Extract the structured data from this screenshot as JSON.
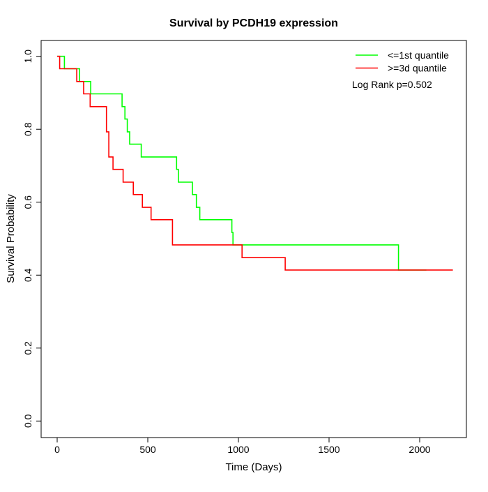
{
  "title": "Survival by PCDH19 expression",
  "axes": {
    "x_label": "Time (Days)",
    "y_label": "Survival Probability",
    "x_ticks": [
      0,
      500,
      1000,
      1500,
      2000
    ],
    "y_ticks": [
      "0.0",
      "0.2",
      "0.4",
      "0.6",
      "0.8",
      "1.0"
    ]
  },
  "legend": {
    "items": [
      {
        "label": "<=1st quantile",
        "color": "#00ff00"
      },
      {
        "label": ">=3d quantile",
        "color": "#ff0000"
      }
    ],
    "note": "Log Rank p=0.502"
  },
  "chart_data": {
    "type": "line",
    "subtype": "kaplan-meier-step",
    "title": "Survival by PCDH19 expression",
    "xlabel": "Time (Days)",
    "ylabel": "Survival Probability",
    "xlim": [
      0,
      2250
    ],
    "ylim": [
      0,
      1
    ],
    "grid": false,
    "legend_position": "top-right",
    "annotation": "Log Rank p=0.502",
    "series": [
      {
        "name": "<=1st quantile",
        "color": "#00ff00",
        "steps": [
          [
            0,
            1.0
          ],
          [
            40,
            0.966
          ],
          [
            124,
            0.931
          ],
          [
            185,
            0.897
          ],
          [
            358,
            0.862
          ],
          [
            374,
            0.828
          ],
          [
            387,
            0.793
          ],
          [
            400,
            0.759
          ],
          [
            464,
            0.724
          ],
          [
            659,
            0.69
          ],
          [
            669,
            0.655
          ],
          [
            746,
            0.621
          ],
          [
            768,
            0.586
          ],
          [
            787,
            0.552
          ],
          [
            964,
            0.517
          ],
          [
            970,
            0.483
          ],
          [
            1883,
            0.414
          ]
        ],
        "end_time": 2037
      },
      {
        "name": ">=3d quantile",
        "color": "#ff0000",
        "steps": [
          [
            0,
            1.0
          ],
          [
            14,
            0.966
          ],
          [
            108,
            0.931
          ],
          [
            146,
            0.897
          ],
          [
            182,
            0.862
          ],
          [
            272,
            0.793
          ],
          [
            285,
            0.724
          ],
          [
            308,
            0.69
          ],
          [
            364,
            0.655
          ],
          [
            420,
            0.621
          ],
          [
            470,
            0.586
          ],
          [
            518,
            0.552
          ],
          [
            636,
            0.483
          ],
          [
            1020,
            0.448
          ],
          [
            1258,
            0.414
          ]
        ],
        "end_time": 2183
      }
    ]
  }
}
